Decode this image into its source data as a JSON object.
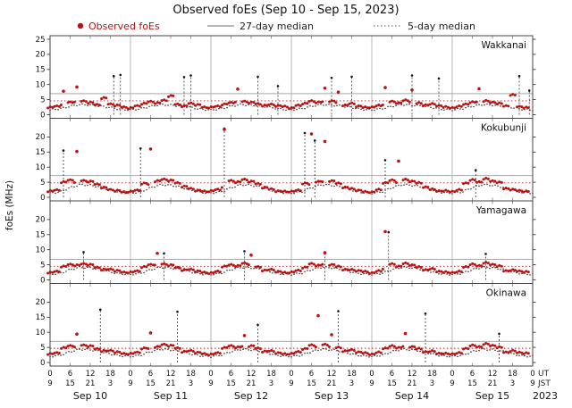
{
  "title": "Observed foEs (Sep 10 - Sep 15, 2023)",
  "legend": {
    "observed": "Observed foEs",
    "median27": "27-day median",
    "median5": "5-day median"
  },
  "ylabel": "foEs (MHz)",
  "axis": {
    "ut_label": "UT",
    "jst_label": "JST",
    "year": "2023",
    "day_labels": [
      "Sep 10",
      "Sep 11",
      "Sep 12",
      "Sep 13",
      "Sep 14",
      "Sep 15"
    ],
    "ut_tick_labels": [
      "0",
      "6",
      "12",
      "18"
    ],
    "jst_tick_labels": [
      "9",
      "15",
      "21",
      "3"
    ],
    "ut_last": "0",
    "jst_last": "9"
  },
  "colors": {
    "observed": "#bb1111",
    "median27_line": "#a9a9a9",
    "median5_dots": "#1a1a1a",
    "red_dotted_line": "#aa2222",
    "spike_dashed": "#333333",
    "grid": "#999999",
    "panel_border": "#444444"
  },
  "chart_data": {
    "type": "scatter",
    "x_hours_range": [
      0,
      144
    ],
    "x_unit": "hours UT from Sep 10 00:00",
    "sample_interval_hours": 2,
    "ylim": [
      0,
      25
    ],
    "yticks": [
      0,
      5,
      10,
      15,
      20,
      25
    ],
    "grid": "day-boundary vertical lines, 6-hour minor ticks",
    "legend_position": "top",
    "stations": [
      {
        "name": "Wakkanai",
        "median27": 7.0,
        "red_dotted_level": 4.6,
        "median5_daily_3h": [
          1.6,
          2.0,
          2.8,
          3.4,
          3.2,
          2.9,
          2.4,
          1.8
        ],
        "obs": [
          2.4,
          2.9,
          7.8,
          4.2,
          9.2,
          4.6,
          4.0,
          3.4,
          5.5,
          3.6,
          3.1,
          2.6,
          2.2,
          3.0,
          3.7,
          4.4,
          3.9,
          4.8,
          6.2,
          3.5,
          2.9,
          3.8,
          3.3,
          2.5,
          2.5,
          2.8,
          3.5,
          4.0,
          8.5,
          4.4,
          4.1,
          3.6,
          3.1,
          3.4,
          3.0,
          2.7,
          2.3,
          3.1,
          3.8,
          4.5,
          4.2,
          8.8,
          4.6,
          7.5,
          3.2,
          3.7,
          2.9,
          2.4,
          2.6,
          3.0,
          9.0,
          4.3,
          4.0,
          4.7,
          8.2,
          3.8,
          3.3,
          3.5,
          3.1,
          2.5,
          2.4,
          2.7,
          3.6,
          4.1,
          8.6,
          4.5,
          4.2,
          3.7,
          3.0,
          6.5,
          2.8,
          2.3
        ],
        "spikes": [
          [
            19,
            12.8
          ],
          [
            21,
            13.2
          ],
          [
            40,
            12.5
          ],
          [
            42,
            13.0
          ],
          [
            62,
            12.6
          ],
          [
            68,
            9.5
          ],
          [
            84,
            12.2
          ],
          [
            90,
            12.6
          ],
          [
            108,
            13.0
          ],
          [
            116,
            12.0
          ],
          [
            140,
            12.8
          ],
          [
            143,
            8.0
          ]
        ]
      },
      {
        "name": "Kokubunji",
        "median27": 7.2,
        "red_dotted_level": 4.8,
        "median5_daily_3h": [
          1.4,
          1.8,
          3.2,
          4.2,
          4.0,
          3.4,
          2.4,
          1.6
        ],
        "obs": [
          2.0,
          2.5,
          5.0,
          5.8,
          15.2,
          5.6,
          5.2,
          4.4,
          3.2,
          2.6,
          2.2,
          1.8,
          1.9,
          2.4,
          4.6,
          16.0,
          5.4,
          6.0,
          5.6,
          4.8,
          3.6,
          2.9,
          2.3,
          2.0,
          2.1,
          2.6,
          22.5,
          5.5,
          5.1,
          5.9,
          5.3,
          4.5,
          3.3,
          2.7,
          2.1,
          1.9,
          2.0,
          2.3,
          4.7,
          21.0,
          5.3,
          18.5,
          5.5,
          4.6,
          3.4,
          2.8,
          2.4,
          1.8,
          1.8,
          2.5,
          4.9,
          5.6,
          12.0,
          5.8,
          5.4,
          4.7,
          3.5,
          2.6,
          2.2,
          2.1,
          2.0,
          2.4,
          4.8,
          5.7,
          5.2,
          6.1,
          5.5,
          4.9,
          3.0,
          2.5,
          2.3,
          1.9
        ],
        "spikes": [
          [
            4,
            15.5
          ],
          [
            27,
            16.2
          ],
          [
            52,
            22.8
          ],
          [
            76,
            21.3
          ],
          [
            79,
            18.8
          ],
          [
            100,
            12.3
          ],
          [
            127,
            9.0
          ]
        ]
      },
      {
        "name": "Yamagawa",
        "median27": 6.8,
        "red_dotted_level": 4.5,
        "median5_daily_3h": [
          1.8,
          2.2,
          3.4,
          4.2,
          4.0,
          3.5,
          2.6,
          2.0
        ],
        "obs": [
          2.4,
          2.9,
          4.4,
          5.2,
          4.8,
          5.4,
          5.0,
          4.2,
          3.4,
          3.6,
          3.0,
          2.6,
          2.5,
          3.0,
          4.3,
          5.1,
          8.8,
          5.3,
          4.9,
          4.1,
          3.3,
          3.5,
          2.9,
          2.5,
          2.3,
          2.8,
          4.5,
          5.0,
          4.7,
          5.5,
          8.2,
          4.3,
          3.2,
          3.4,
          2.8,
          2.4,
          2.6,
          3.1,
          4.2,
          5.3,
          4.9,
          9.0,
          5.1,
          4.4,
          3.5,
          3.3,
          3.1,
          2.7,
          2.4,
          2.9,
          16.0,
          5.2,
          4.6,
          5.4,
          5.0,
          4.2,
          3.4,
          3.6,
          2.9,
          2.5,
          2.5,
          2.7,
          4.4,
          5.1,
          4.8,
          5.6,
          5.2,
          4.5,
          3.1,
          3.2,
          3.0,
          2.6
        ],
        "spikes": [
          [
            10,
            9.2
          ],
          [
            34,
            8.8
          ],
          [
            58,
            9.5
          ],
          [
            82,
            9.0
          ],
          [
            101,
            15.8
          ],
          [
            130,
            8.6
          ]
        ]
      },
      {
        "name": "Okinawa",
        "median27": 7.0,
        "red_dotted_level": 4.7,
        "median5_daily_3h": [
          2.0,
          2.4,
          3.6,
          4.4,
          4.2,
          3.7,
          2.8,
          2.2
        ],
        "obs": [
          2.8,
          3.3,
          4.8,
          5.6,
          9.4,
          5.8,
          5.4,
          4.6,
          3.8,
          4.0,
          3.4,
          3.0,
          2.9,
          3.4,
          4.7,
          9.8,
          5.2,
          6.0,
          5.6,
          4.8,
          3.6,
          3.9,
          3.3,
          2.9,
          2.7,
          3.2,
          4.9,
          5.5,
          5.1,
          8.9,
          5.5,
          4.7,
          3.7,
          3.8,
          3.2,
          2.8,
          3.0,
          3.5,
          4.6,
          5.7,
          15.5,
          5.9,
          9.2,
          4.9,
          3.9,
          4.1,
          3.5,
          3.1,
          2.8,
          3.3,
          4.8,
          5.4,
          5.0,
          9.6,
          5.3,
          4.5,
          3.6,
          3.7,
          3.1,
          2.9,
          2.9,
          3.1,
          4.7,
          5.6,
          5.3,
          6.1,
          5.7,
          5.0,
          3.5,
          3.8,
          3.4,
          3.0
        ],
        "spikes": [
          [
            15,
            17.5
          ],
          [
            38,
            16.8
          ],
          [
            62,
            12.5
          ],
          [
            86,
            17.0
          ],
          [
            112,
            16.2
          ],
          [
            134,
            9.5
          ]
        ]
      }
    ]
  }
}
